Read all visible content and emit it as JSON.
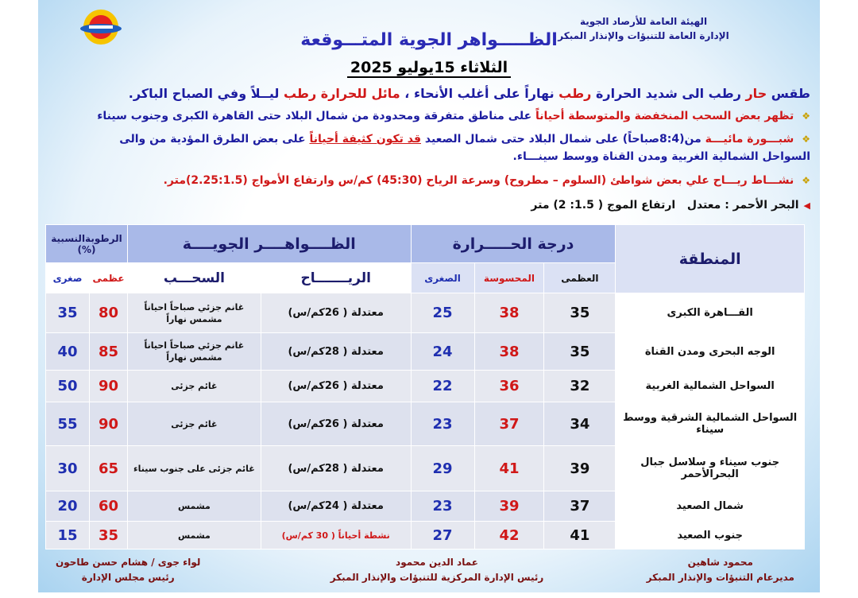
{
  "header": {
    "org_line1": "الهيئة العامة للأرصاد الجوية",
    "org_line2": "الإدارة العامة للتنبؤات والإنذار المبكر",
    "title": "الظـــــواهر الجوية المتـــوقعة",
    "date": "الثلاثاء 15يوليو 2025"
  },
  "summary": {
    "p1": "طقس ",
    "p2": "حار",
    "p3": " رطب الى شديد الحرارة ",
    "p4": "رطب",
    "p5": " نهاراً على أغلب الأنحاء ، ",
    "p6": "مائل للحرارة رطب",
    "p7": " ليــلاً وفي الصباح الباكر."
  },
  "bullets": [
    {
      "a": "تظهر بعض السحب المنخفضة والمتوسطة أحياناً",
      "b": " على مناطق متفرقة ومحدودة من شمال البلاد حتى القاهرة الكبرى وجنوب سيناء"
    },
    {
      "a": "شبـــورة مائيـــة",
      "b": " من(8:4صباحاً) على شمال البلاد حتى شمال الصعيد ",
      "c": "قد تكون كثيفة أحياناً",
      "d": " على بعض الطرق المؤدية من والى السواحل الشمالية الغربية ومدن القناة ووسط سينـــاء."
    },
    {
      "a": "نشـــاط ريـــاح",
      "b": " علي بعض شواطئ (السلوم – مطروح) وسرعة الرياح (45:30) كم/س وارتفاع الأمواج (2.25:1.5)متر."
    }
  ],
  "red_sea": {
    "label": "البحر الأحمر : معتدل",
    "wave": "ارتفاع الموج ( 1.5: 2) متر"
  },
  "table": {
    "h_region": "المنطقة",
    "h_temp": "درجة الحـــــرارة",
    "h_phen": "الظــــواهــــر الجويــــة",
    "h_hum": "الرطوبةالنسبية (%)",
    "h_max": "العظمى",
    "h_feel": "المحسوسة",
    "h_min": "الصغرى",
    "h_wind": "الريـــــــاح",
    "h_cloud": "السحـــب",
    "h_hmax": "عظمى",
    "h_hmin": "صغرى",
    "rows": [
      {
        "region": "القـــاهرة الكبرى",
        "max": "35",
        "feel": "38",
        "min": "25",
        "wind": "معتدلة ( 26كم/س)",
        "cloud": "غانم جزئي صباحاً احياناً مشمس نهاراً",
        "hmax": "80",
        "hmin": "35"
      },
      {
        "region": "الوجه البحرى ومدن القناة",
        "max": "35",
        "feel": "38",
        "min": "24",
        "wind": "معتدلة ( 28كم/س)",
        "cloud": "غانم جزئي صباحاً احياناً مشمس نهاراً",
        "hmax": "85",
        "hmin": "40"
      },
      {
        "region": "السواحل الشمالية الغربية",
        "max": "32",
        "feel": "36",
        "min": "22",
        "wind": "معتدلة ( 26كم/س)",
        "cloud": "غائم جزئى",
        "hmax": "90",
        "hmin": "50"
      },
      {
        "region": "السواحل الشمالية الشرقية ووسط سيناء",
        "max": "34",
        "feel": "37",
        "min": "23",
        "wind": "معتدلة ( 26كم/س)",
        "cloud": "غائم جزئى",
        "hmax": "90",
        "hmin": "55"
      },
      {
        "region": "جنوب سيناء و سلاسل جبال البحرالأحمر",
        "max": "39",
        "feel": "41",
        "min": "29",
        "wind": "معتدلة ( 28كم/س)",
        "cloud": "غائم جزئى على جنوب سيناء",
        "hmax": "65",
        "hmin": "30"
      },
      {
        "region": "شمال الصعيد",
        "max": "37",
        "feel": "39",
        "min": "23",
        "wind": "معتدلة ( 24كم/س)",
        "cloud": "مشمس",
        "hmax": "60",
        "hmin": "20"
      },
      {
        "region": "جنوب الصعيد",
        "max": "41",
        "feel": "42",
        "min": "27",
        "wind": "نشطة أحياناً ( 30 كم/س)",
        "cloud": "مشمس",
        "hmax": "35",
        "hmin": "15"
      }
    ]
  },
  "footer": {
    "right_name": "محمود شاهين",
    "right_title": "مديرعام التنبؤات والإنذار المبكر",
    "mid_name": "عماد الدين محمود",
    "mid_title": "رئيس الإدارة المركزية للتنبؤات والإنذار المبكر",
    "left_name": "لواء جوى / هشام حسن طاحون",
    "left_title": "رئيس مجلس الإدارة"
  },
  "colors": {
    "blue_text": "#1c1ca0",
    "red_text": "#d01818",
    "header_bg": "#a9b9e8"
  }
}
